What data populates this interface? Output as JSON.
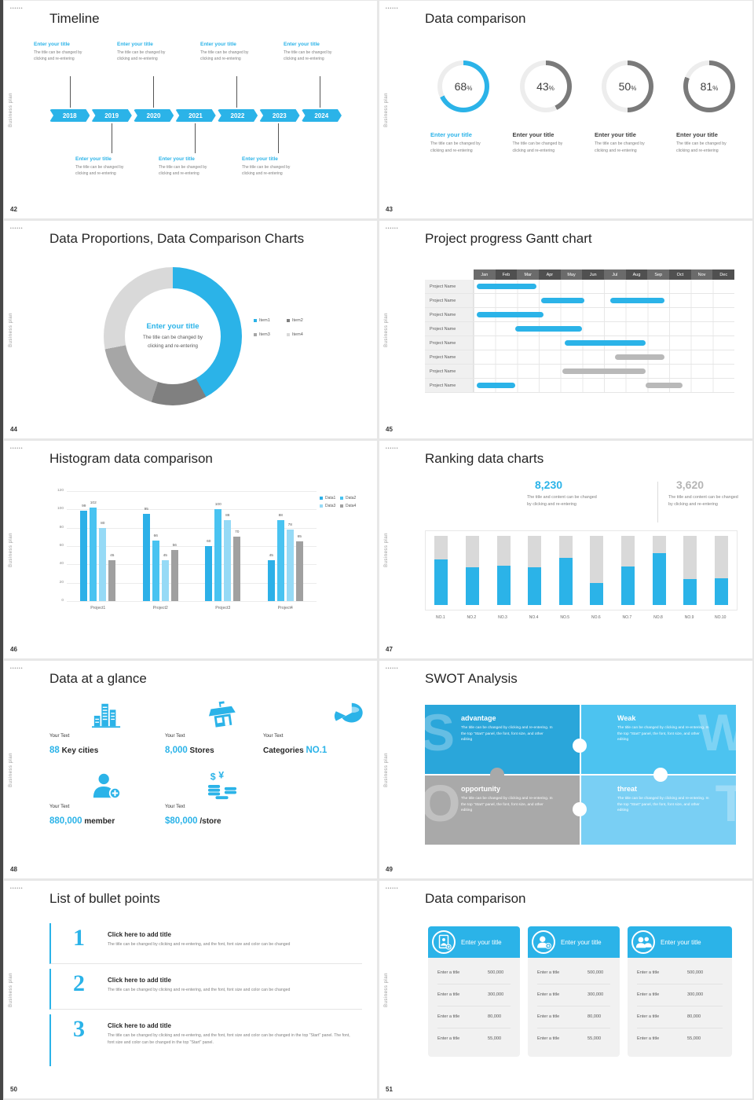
{
  "common": {
    "brand_dots": "••••••",
    "side_label": "Business plan",
    "accent": "#2bb3e8"
  },
  "slides": {
    "s42": {
      "num": "42",
      "title": "Timeline",
      "years": [
        "2018",
        "2019",
        "2020",
        "2021",
        "2022",
        "2023",
        "2024"
      ],
      "top_items": [
        {
          "title": "Enter your title",
          "d1": "The title can be changed by",
          "d2": "clicking and re-entering"
        },
        {
          "title": "Enter your title",
          "d1": "The title can be changed by",
          "d2": "clicking and re-entering"
        },
        {
          "title": "Enter your title",
          "d1": "The title can be changed by",
          "d2": "clicking and re-entering"
        },
        {
          "title": "Enter your title",
          "d1": "The title can be changed by",
          "d2": "clicking and re-entering"
        }
      ],
      "bottom_items": [
        {
          "title": "Enter your title",
          "d1": "The title can be changed by",
          "d2": "clicking and re-entering"
        },
        {
          "title": "Enter your title",
          "d1": "The title can be changed by",
          "d2": "clicking and re-entering"
        },
        {
          "title": "Enter your title",
          "d1": "The title can be changed by",
          "d2": "clicking and re-entering"
        }
      ]
    },
    "s43": {
      "num": "43",
      "title": "Data comparison",
      "rings": [
        {
          "percent": 68,
          "active": true,
          "title": "Enter your title",
          "d1": "The title can be changed by",
          "d2": "clicking and re-entering"
        },
        {
          "percent": 43,
          "active": false,
          "title": "Enter your title",
          "d1": "The title can be changed by",
          "d2": "clicking and re-entering"
        },
        {
          "percent": 50,
          "active": false,
          "title": "Enter your title",
          "d1": "The title can be changed by",
          "d2": "clicking and re-entering"
        },
        {
          "percent": 81,
          "active": false,
          "title": "Enter your title",
          "d1": "The title can be changed by",
          "d2": "clicking and re-entering"
        }
      ]
    },
    "s44": {
      "num": "44",
      "title": "Data Proportions, Data Comparison Charts",
      "center_title": "Enter your title",
      "center_d1": "The title can be changed by",
      "center_d2": "clicking and re-entering",
      "segments": [
        {
          "label": "Item1",
          "value": 42,
          "color": "#2bb3e8"
        },
        {
          "label": "Item2",
          "value": 13,
          "color": "#808080"
        },
        {
          "label": "Item3",
          "value": 17,
          "color": "#a6a6a6"
        },
        {
          "label": "Item4",
          "value": 28,
          "color": "#d9d9d9"
        }
      ]
    },
    "s45": {
      "num": "45",
      "title": "Project progress Gantt chart",
      "months": [
        "Jan",
        "Feb",
        "Mar",
        "Apr",
        "May",
        "Jun",
        "Jul",
        "Aug",
        "Sep",
        "Oct",
        "Nov",
        "Dec"
      ],
      "row_label": "Project Name",
      "rows": [
        {
          "bars": [
            {
              "start": 0.15,
              "end": 2.9,
              "color": "blue"
            }
          ]
        },
        {
          "bars": [
            {
              "start": 3.1,
              "end": 5.1,
              "color": "blue"
            },
            {
              "start": 6.3,
              "end": 8.8,
              "color": "blue"
            }
          ]
        },
        {
          "bars": [
            {
              "start": 0.15,
              "end": 3.2,
              "color": "blue"
            }
          ]
        },
        {
          "bars": [
            {
              "start": 1.9,
              "end": 5.0,
              "color": "blue"
            }
          ]
        },
        {
          "bars": [
            {
              "start": 4.2,
              "end": 7.9,
              "color": "blue"
            }
          ]
        },
        {
          "bars": [
            {
              "start": 6.5,
              "end": 8.8,
              "color": "gray"
            }
          ]
        },
        {
          "bars": [
            {
              "start": 4.1,
              "end": 7.9,
              "color": "gray"
            }
          ]
        },
        {
          "bars": [
            {
              "start": 0.15,
              "end": 1.9,
              "color": "blue"
            },
            {
              "start": 7.9,
              "end": 9.6,
              "color": "gray"
            }
          ]
        }
      ]
    },
    "s46": {
      "num": "46",
      "title": "Histogram data comparison",
      "chart_data": {
        "type": "bar",
        "categories": [
          "Project1",
          "Project2",
          "Project3",
          "Project4"
        ],
        "series": [
          {
            "name": "Data1",
            "color": "#2cb0e8",
            "values": [
              99,
              95,
              60,
              45
            ]
          },
          {
            "name": "Data2",
            "color": "#49c3f1",
            "values": [
              102,
              66,
              100,
              88
            ]
          },
          {
            "name": "Data3",
            "color": "#96daf6",
            "values": [
              80,
              45,
              88,
              78
            ]
          },
          {
            "name": "Data4",
            "color": "#a0a0a0",
            "values": [
              45,
              56,
              70,
              65
            ]
          }
        ],
        "yticks": [
          0,
          20,
          40,
          60,
          80,
          100,
          120
        ],
        "ylim": [
          0,
          120
        ]
      }
    },
    "s47": {
      "num": "47",
      "title": "Ranking data charts",
      "stat1": {
        "value": "8,230",
        "d1": "The title and content can be changed",
        "d2": "by clicking and re-entering"
      },
      "stat2": {
        "value": "3,620",
        "d1": "The title and content can be changed",
        "d2": "by clicking and re-entering"
      },
      "bars": [
        {
          "label": "NO.1",
          "fraction": 0.66
        },
        {
          "label": "NO.2",
          "fraction": 0.54
        },
        {
          "label": "NO.3",
          "fraction": 0.57
        },
        {
          "label": "NO.4",
          "fraction": 0.55
        },
        {
          "label": "NO.5",
          "fraction": 0.68
        },
        {
          "label": "NO.6",
          "fraction": 0.32
        },
        {
          "label": "NO.7",
          "fraction": 0.56
        },
        {
          "label": "NO.8",
          "fraction": 0.75
        },
        {
          "label": "NO.9",
          "fraction": 0.38
        },
        {
          "label": "NO.10",
          "fraction": 0.39
        }
      ]
    },
    "s48": {
      "num": "48",
      "title": "Data at a glance",
      "items": [
        {
          "icon": "city-icon",
          "label": "Your Text",
          "pre": "",
          "value": "88",
          "unit": "Key cities"
        },
        {
          "icon": "store-icon",
          "label": "Your Text",
          "pre": "",
          "value": "8,000",
          "unit": "Stores"
        },
        {
          "icon": "pie-icon",
          "label": "Your Text",
          "pre": "Categories",
          "value": "NO.1",
          "unit": ""
        },
        {
          "icon": "member-icon",
          "label": "Your Text",
          "pre": "",
          "value": "880,000",
          "unit": "member"
        },
        {
          "icon": "coins-icon",
          "label": "Your Text",
          "pre": "",
          "value": "$80,000",
          "unit": "/store"
        }
      ]
    },
    "s49": {
      "num": "49",
      "title": "SWOT Analysis",
      "tiles": [
        {
          "letter": "S",
          "title": "advantage",
          "color": "#2aa6da",
          "text": "The title can be changed by clicking and re-entering. In the top \"Start\" panel, the font, font size, and other editing"
        },
        {
          "letter": "W",
          "title": "Weak",
          "color": "#4cc3f0",
          "text": "The title can be changed by clicking and re-entering. In the top \"Start\" panel, the font, font size, and other editing"
        },
        {
          "letter": "O",
          "title": "opportunity",
          "color": "#a9a9a9",
          "text": "The title can be changed by clicking and re-entering. In the top \"Start\" panel, the font, font size, and other editing"
        },
        {
          "letter": "T",
          "title": "threat",
          "color": "#79cff4",
          "text": "The title can be changed by clicking and re-entering. In the top \"Start\" panel, the font, font size, and other editing"
        }
      ]
    },
    "s50": {
      "num": "50",
      "title": "List of bullet points",
      "items": [
        {
          "num": "1",
          "title": "Click here to add title",
          "desc": "The title can be changed by clicking and re-entering, and the font, font size and color can be changed"
        },
        {
          "num": "2",
          "title": "Click here to add title",
          "desc": "The title can be changed by clicking and re-entering, and the font, font size and color can be changed"
        },
        {
          "num": "3",
          "title": "Click here to add title",
          "desc": "The title can be changed by clicking and re-entering, and the font, font size and color can be changed in the top \"Start\" panel. The font, font size and color can be changed in the top \"Start\" panel."
        }
      ]
    },
    "s51": {
      "num": "51",
      "title": "Data comparison",
      "cards": [
        {
          "icon": "contact-plus-icon",
          "title": "Enter your title",
          "rows": [
            {
              "label": "Enter a title",
              "value": "500,000"
            },
            {
              "label": "Enter a title",
              "value": "300,000"
            },
            {
              "label": "Enter a title",
              "value": "80,000"
            },
            {
              "label": "Enter a title",
              "value": "55,000"
            }
          ]
        },
        {
          "icon": "person-plus-icon",
          "title": "Enter your title",
          "rows": [
            {
              "label": "Enter a title",
              "value": "500,000"
            },
            {
              "label": "Enter a title",
              "value": "300,000"
            },
            {
              "label": "Enter a title",
              "value": "80,000"
            },
            {
              "label": "Enter a title",
              "value": "55,000"
            }
          ]
        },
        {
          "icon": "people-icon",
          "title": "Enter your title",
          "rows": [
            {
              "label": "Enter a title",
              "value": "500,000"
            },
            {
              "label": "Enter a title",
              "value": "300,000"
            },
            {
              "label": "Enter a title",
              "value": "80,000"
            },
            {
              "label": "Enter a title",
              "value": "55,000"
            }
          ]
        }
      ]
    }
  }
}
